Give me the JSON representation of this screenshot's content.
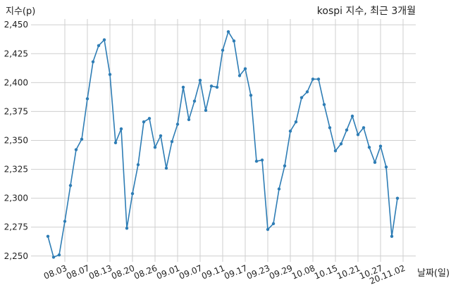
{
  "chart_data": {
    "type": "line",
    "title": "kospi 지수, 최근 3개월",
    "xlabel": "날짜(일)",
    "ylabel": "지수(p)",
    "ylim": [
      2245,
      2455
    ],
    "yticks": [
      2250,
      2275,
      2300,
      2325,
      2350,
      2375,
      2400,
      2425,
      2450
    ],
    "ytick_labels": [
      "2,250",
      "2,275",
      "2,300",
      "2,325",
      "2,350",
      "2,375",
      "2,400",
      "2,425",
      "2,450"
    ],
    "xticks": [
      {
        "index": 3,
        "label": "08.03"
      },
      {
        "index": 7,
        "label": "08.07"
      },
      {
        "index": 11,
        "label": "08.13"
      },
      {
        "index": 15,
        "label": "08.20"
      },
      {
        "index": 19,
        "label": "08.26"
      },
      {
        "index": 23,
        "label": "09.01"
      },
      {
        "index": 27,
        "label": "09.07"
      },
      {
        "index": 31,
        "label": "09.11"
      },
      {
        "index": 35,
        "label": "09.17"
      },
      {
        "index": 39,
        "label": "09.23"
      },
      {
        "index": 43,
        "label": "09.29"
      },
      {
        "index": 47,
        "label": "10.08"
      },
      {
        "index": 51,
        "label": "10.15"
      },
      {
        "index": 55,
        "label": "10.21"
      },
      {
        "index": 59,
        "label": "10.27"
      },
      {
        "index": 63,
        "label": "20.11.02"
      }
    ],
    "grid": true,
    "color": "#2e7db5",
    "series": [
      {
        "values": [
          2267,
          2249,
          2251,
          2280,
          2311,
          2342,
          2351,
          2386,
          2418,
          2432,
          2437,
          2407,
          2348,
          2360,
          2274,
          2304,
          2329,
          2366,
          2369,
          2344,
          2354,
          2326,
          2349,
          2364,
          2396,
          2368,
          2384,
          2402,
          2376,
          2397,
          2396,
          2428,
          2444,
          2436,
          2406,
          2412,
          2389,
          2332,
          2333,
          2273,
          2278,
          2308,
          2328,
          2358,
          2366,
          2387,
          2392,
          2403,
          2403,
          2381,
          2361,
          2341,
          2347,
          2359,
          2371,
          2355,
          2361,
          2344,
          2331,
          2345,
          2327,
          2267,
          2300
        ]
      }
    ]
  }
}
